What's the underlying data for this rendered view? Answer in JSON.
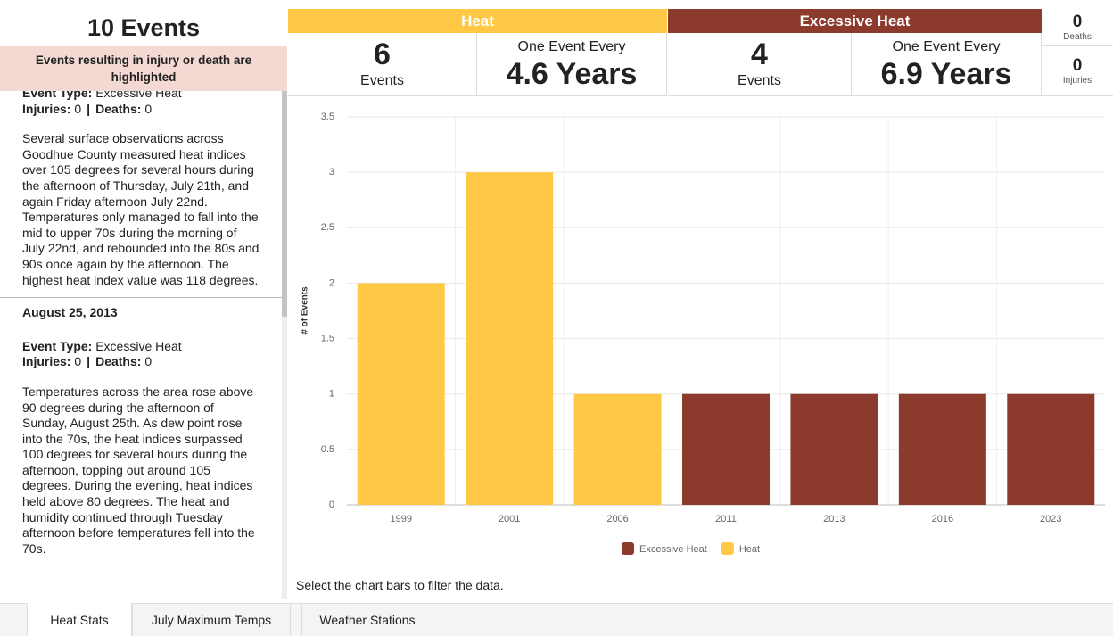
{
  "summary": {
    "title": "10 Events",
    "note": "Events resulting in injury or death are highlighted"
  },
  "stats": {
    "heat": {
      "name": "Heat",
      "count": 6,
      "count_label": "Events",
      "interval_label": "One Event Every",
      "interval": "4.6 Years"
    },
    "excessive": {
      "name": "Excessive Heat",
      "count": 4,
      "count_label": "Events",
      "interval_label": "One Event Every",
      "interval": "6.9 Years"
    },
    "deaths": {
      "value": 0,
      "label": "Deaths"
    },
    "injuries": {
      "value": 0,
      "label": "Injuries"
    }
  },
  "labels": {
    "event_type": "Event Type:",
    "injuries": "Injuries:",
    "deaths": "Deaths:",
    "separator": "|"
  },
  "events": [
    {
      "event_type": "Excessive Heat",
      "injuries": 0,
      "deaths": 0,
      "description": "Several surface observations across Goodhue County measured heat indices over 105 degrees for several hours during the afternoon of Thursday, July 21th, and again Friday afternoon July 22nd. Temperatures only managed to fall into the mid to upper 70s during the morning of July 22nd, and rebounded into the 80s and 90s once again by the afternoon. The highest heat index value was 118 degrees."
    },
    {
      "date": "August 25, 2013",
      "event_type": "Excessive Heat",
      "injuries": 0,
      "deaths": 0,
      "description": "Temperatures across the area rose above 90 degrees during the afternoon of Sunday, August 25th. As dew point rose into the 70s, the heat indices surpassed 100 degrees for several hours during the afternoon, topping out around 105 degrees. During the evening, heat indices held above 80 degrees. The heat and humidity continued through Tuesday afternoon before temperatures fell into the 70s."
    }
  ],
  "footer": "Select the chart bars to filter the data.",
  "tabs": [
    "Heat Stats",
    "July Maximum Temps",
    "Weather Stations"
  ],
  "chart_data": {
    "type": "bar",
    "y_label": "# of Events",
    "categories": [
      "1999",
      "2001",
      "2006",
      "2011",
      "2013",
      "2016",
      "2023"
    ],
    "series": [
      {
        "name": "Excessive Heat",
        "color": "#8b3a2b",
        "values": [
          null,
          null,
          null,
          1,
          1,
          1,
          1
        ]
      },
      {
        "name": "Heat",
        "color": "#ffc845",
        "values": [
          2,
          3,
          1,
          null,
          null,
          null,
          null
        ]
      }
    ],
    "ylim": [
      0,
      3.5
    ],
    "yticks": [
      0,
      0.5,
      1,
      1.5,
      2,
      2.5,
      3,
      3.5
    ],
    "grid": true,
    "legend": "bottom"
  }
}
